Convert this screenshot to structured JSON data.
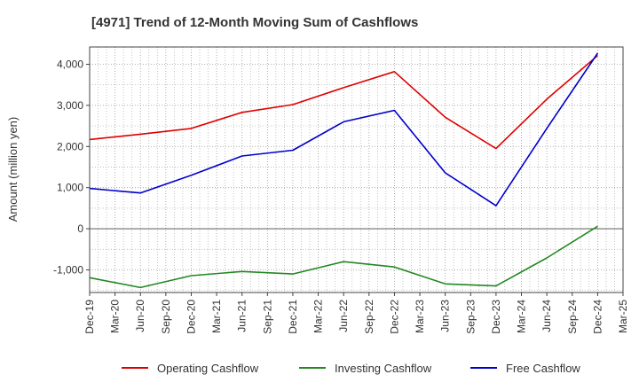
{
  "chart_data": {
    "type": "line",
    "title": "[4971]  Trend of 12-Month Moving Sum of Cashflows",
    "ylabel": "Amount (million yen)",
    "xlabel": "",
    "ylim": [
      -1550,
      4420
    ],
    "yticks": [
      -1000,
      0,
      1000,
      2000,
      3000,
      4000
    ],
    "ytick_labels": [
      "-1,000",
      "0",
      "1,000",
      "2,000",
      "3,000",
      "4,000"
    ],
    "categories": [
      "Dec-19",
      "Mar-20",
      "Jun-20",
      "Sep-20",
      "Dec-20",
      "Mar-21",
      "Jun-21",
      "Sep-21",
      "Dec-21",
      "Mar-22",
      "Jun-22",
      "Sep-22",
      "Dec-22",
      "Mar-23",
      "Jun-23",
      "Sep-23",
      "Dec-23",
      "Mar-24",
      "Jun-24",
      "Sep-24",
      "Dec-24",
      "Mar-25"
    ],
    "grid": true,
    "legend_position": "bottom",
    "series": [
      {
        "name": "Operating Cashflow",
        "color": "#dd0000",
        "points": [
          {
            "x": "Dec-19",
            "y": 2170
          },
          {
            "x": "Jun-20",
            "y": 2300
          },
          {
            "x": "Dec-20",
            "y": 2440
          },
          {
            "x": "Jun-21",
            "y": 2830
          },
          {
            "x": "Dec-21",
            "y": 3020
          },
          {
            "x": "Jun-22",
            "y": 3430
          },
          {
            "x": "Dec-22",
            "y": 3820
          },
          {
            "x": "Jun-23",
            "y": 2710
          },
          {
            "x": "Dec-23",
            "y": 1950
          },
          {
            "x": "Jun-24",
            "y": 3150
          },
          {
            "x": "Dec-24",
            "y": 4210
          }
        ]
      },
      {
        "name": "Investing Cashflow",
        "color": "#228822",
        "points": [
          {
            "x": "Dec-19",
            "y": -1190
          },
          {
            "x": "Jun-20",
            "y": -1430
          },
          {
            "x": "Dec-20",
            "y": -1140
          },
          {
            "x": "Jun-21",
            "y": -1040
          },
          {
            "x": "Dec-21",
            "y": -1100
          },
          {
            "x": "Jun-22",
            "y": -800
          },
          {
            "x": "Dec-22",
            "y": -930
          },
          {
            "x": "Jun-23",
            "y": -1340
          },
          {
            "x": "Dec-23",
            "y": -1390
          },
          {
            "x": "Jun-24",
            "y": -710
          },
          {
            "x": "Dec-24",
            "y": 60
          }
        ]
      },
      {
        "name": "Free Cashflow",
        "color": "#0000cc",
        "points": [
          {
            "x": "Dec-19",
            "y": 980
          },
          {
            "x": "Jun-20",
            "y": 870
          },
          {
            "x": "Dec-20",
            "y": 1300
          },
          {
            "x": "Jun-21",
            "y": 1770
          },
          {
            "x": "Dec-21",
            "y": 1910
          },
          {
            "x": "Jun-22",
            "y": 2600
          },
          {
            "x": "Dec-22",
            "y": 2880
          },
          {
            "x": "Jun-23",
            "y": 1360
          },
          {
            "x": "Dec-23",
            "y": 560
          },
          {
            "x": "Jun-24",
            "y": 2440
          },
          {
            "x": "Dec-24",
            "y": 4270
          }
        ]
      }
    ]
  }
}
